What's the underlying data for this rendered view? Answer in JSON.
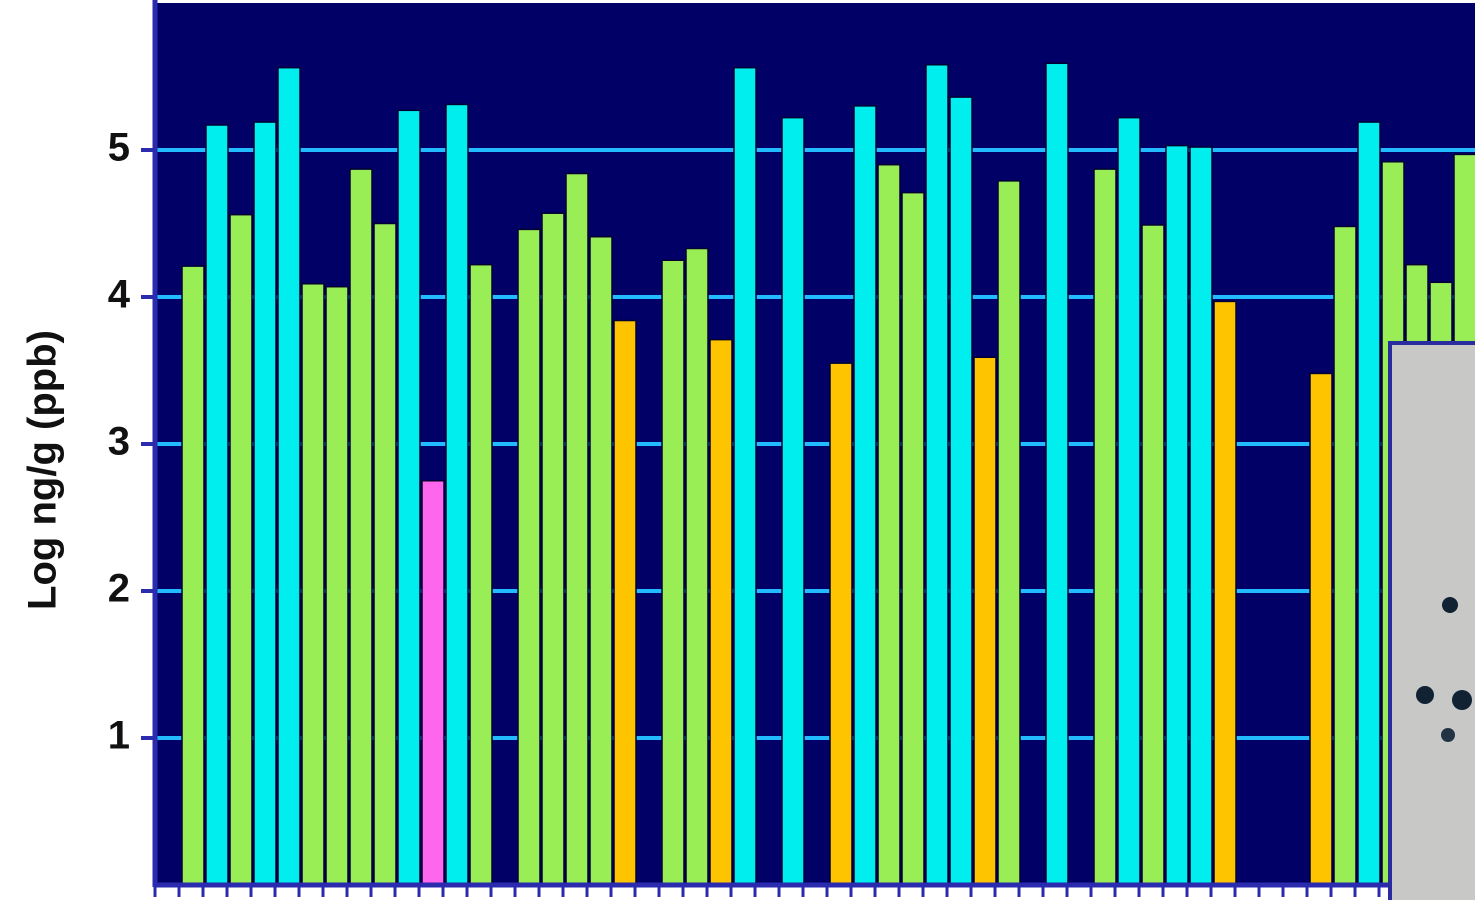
{
  "chart_data": {
    "type": "bar",
    "y_label": "Log ng/g (ppb)",
    "values": [
      null,
      4.21,
      5.17,
      4.56,
      5.19,
      5.56,
      4.09,
      4.07,
      4.87,
      4.5,
      5.27,
      2.75,
      5.31,
      4.22,
      null,
      4.46,
      4.57,
      4.84,
      4.41,
      3.84,
      null,
      4.25,
      4.33,
      3.71,
      5.56,
      null,
      5.22,
      null,
      3.55,
      5.3,
      4.9,
      4.71,
      5.58,
      5.36,
      3.59,
      4.79,
      null,
      5.59,
      null,
      4.87,
      5.22,
      4.49,
      5.03,
      5.02,
      3.97,
      null,
      null,
      null,
      3.48,
      4.48,
      5.19,
      4.92,
      4.22,
      4.1,
      4.97
    ],
    "colors": [
      null,
      "#99ee55",
      "#00eeee",
      "#99ee55",
      "#00eeee",
      "#00eeee",
      "#99ee55",
      "#99ee55",
      "#99ee55",
      "#99ee55",
      "#00eeee",
      "#ff66ee",
      "#00eeee",
      "#99ee55",
      null,
      "#99ee55",
      "#99ee55",
      "#99ee55",
      "#99ee55",
      "#ffc400",
      null,
      "#99ee55",
      "#99ee55",
      "#ffc400",
      "#00eeee",
      null,
      "#00eeee",
      null,
      "#ffc400",
      "#00eeee",
      "#99ee55",
      "#99ee55",
      "#00eeee",
      "#00eeee",
      "#ffc400",
      "#99ee55",
      null,
      "#00eeee",
      null,
      "#99ee55",
      "#00eeee",
      "#99ee55",
      "#00eeee",
      "#00eeee",
      "#ffc400",
      null,
      null,
      null,
      "#ffc400",
      "#99ee55",
      "#00eeee",
      "#99ee55",
      "#99ee55",
      "#99ee55",
      "#99ee55"
    ],
    "ylim": [
      0,
      6
    ],
    "yticks": [
      1,
      2,
      3,
      4,
      5
    ],
    "grid": true,
    "grid_color": "#22bbff",
    "background": "#000066"
  }
}
